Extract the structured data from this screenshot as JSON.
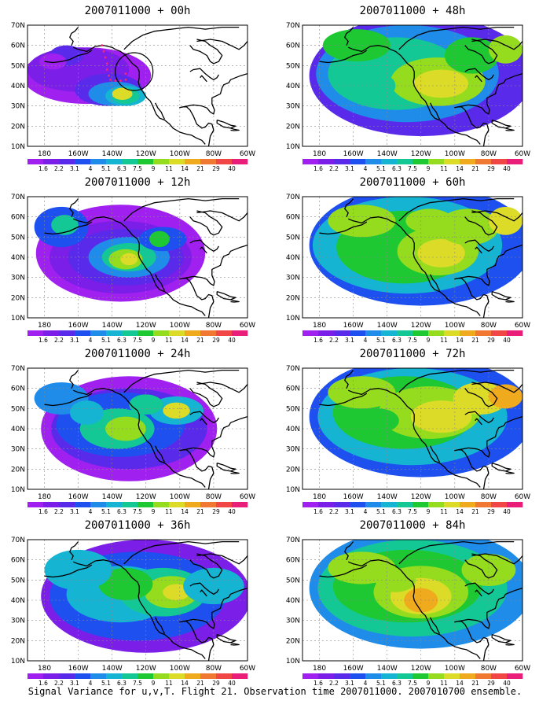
{
  "panels": [
    {
      "title": "2007011000 + 00h",
      "lead": "00h"
    },
    {
      "title": "2007011000 + 48h",
      "lead": "48h"
    },
    {
      "title": "2007011000 + 12h",
      "lead": "12h"
    },
    {
      "title": "2007011000 + 60h",
      "lead": "60h"
    },
    {
      "title": "2007011000 + 24h",
      "lead": "24h"
    },
    {
      "title": "2007011000 + 72h",
      "lead": "72h"
    },
    {
      "title": "2007011000 + 36h",
      "lead": "36h"
    },
    {
      "title": "2007011000 + 84h",
      "lead": "84h"
    }
  ],
  "axes": {
    "lat_labels": [
      "70N",
      "60N",
      "50N",
      "40N",
      "30N",
      "20N",
      "10N"
    ],
    "lon_labels": [
      "180",
      "160W",
      "140W",
      "120W",
      "100W",
      "80W",
      "60W"
    ]
  },
  "colorbar": {
    "levels": [
      "1.6",
      "2.2",
      "3.1",
      "4",
      "5.1",
      "6.3",
      "7.5",
      "9",
      "11",
      "14",
      "21",
      "29",
      "40"
    ],
    "colors": [
      "#a020f0",
      "#7a1ee8",
      "#5a2aea",
      "#1e50f0",
      "#1e8ce8",
      "#14b4d2",
      "#14c896",
      "#1ec832",
      "#96dc1e",
      "#dcdc28",
      "#f0aa1e",
      "#f07832",
      "#f04646",
      "#e81e78"
    ]
  },
  "caption": "Signal Variance for u,v,T. Flight 21. Observation time 2007011000. 2007010700 ensemble."
}
